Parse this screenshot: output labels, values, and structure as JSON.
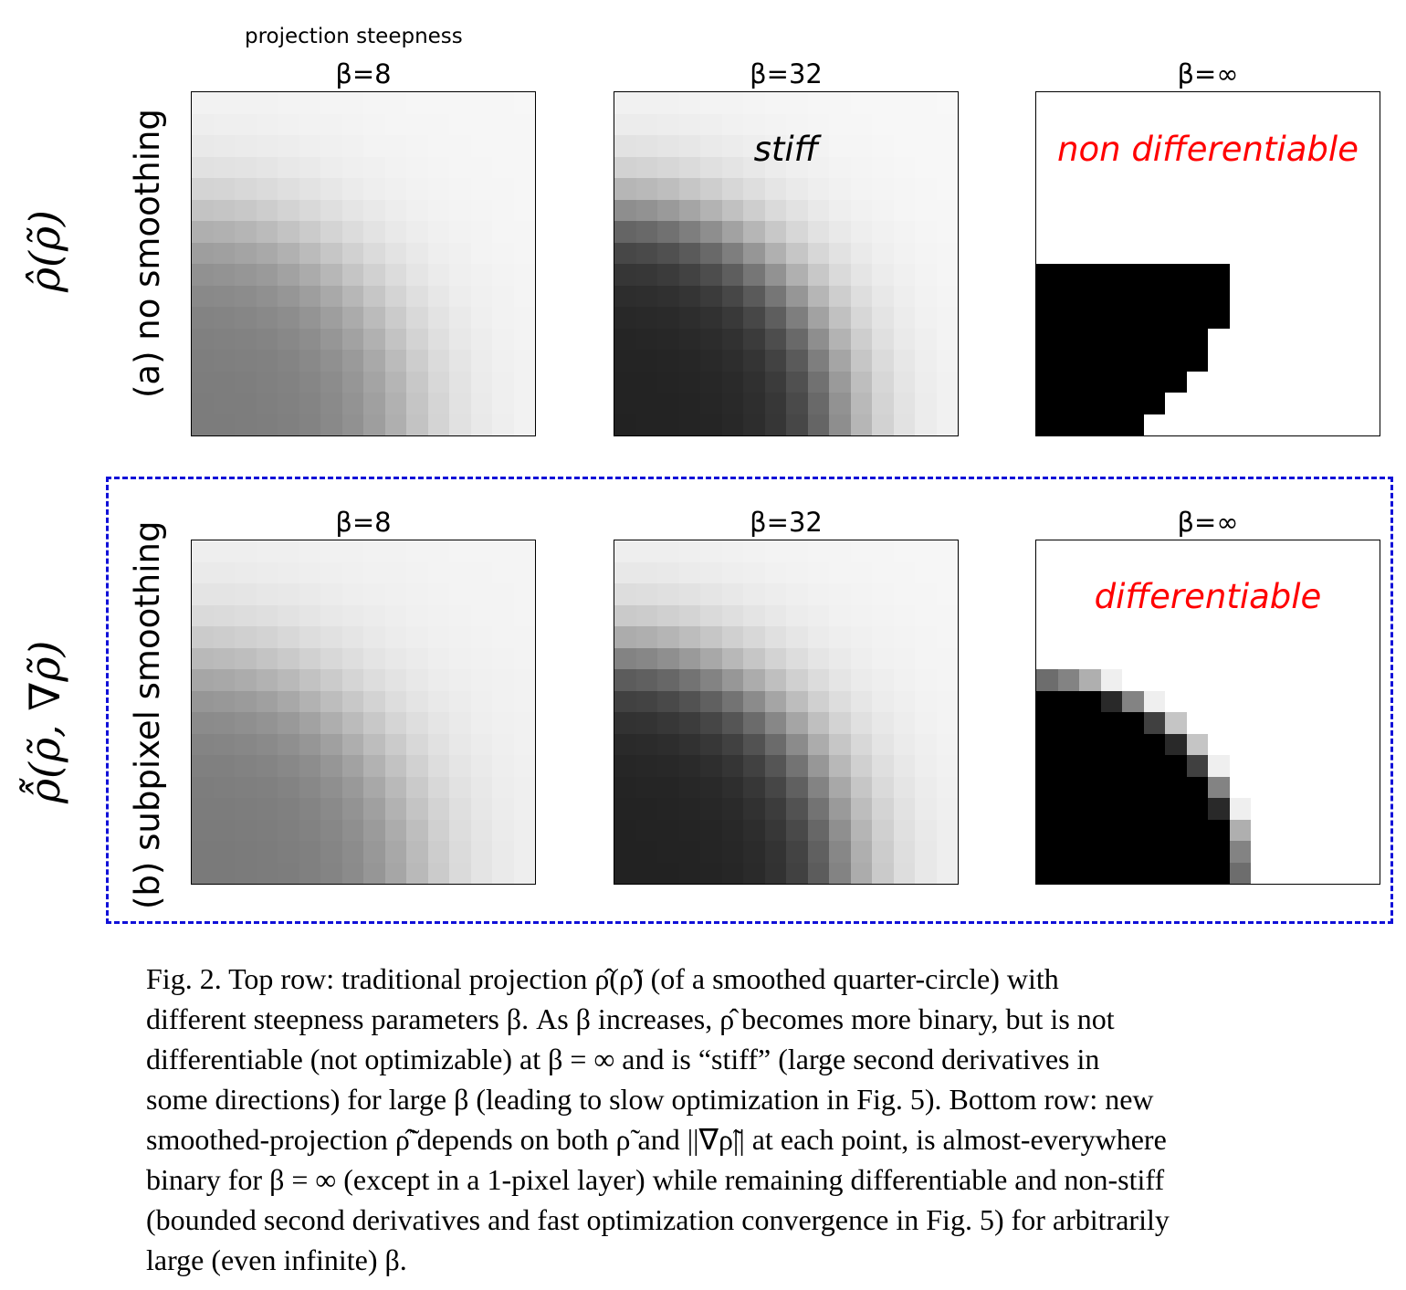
{
  "header": {
    "top_label": "projection steepness"
  },
  "rows": [
    {
      "label": "(a) no smoothing",
      "math_label": "ρ̂(ρ̃)",
      "panels": [
        {
          "beta": "β=8",
          "annotation": ""
        },
        {
          "beta": "β=32",
          "annotation": "stiff"
        },
        {
          "beta": "β=∞",
          "annotation": "non differentiable"
        }
      ]
    },
    {
      "label": "(b) subpixel smoothing",
      "math_label": "ρ̂̃(ρ̃, ∇ρ̃)",
      "panels": [
        {
          "beta": "β=8",
          "annotation": ""
        },
        {
          "beta": "β=32",
          "annotation": ""
        },
        {
          "beta": "β=∞",
          "annotation": "differentiable"
        }
      ]
    }
  ],
  "annotation_colors": {
    "stiff": "#000000",
    "differentiable": "#ff0000"
  },
  "highlight_box_color": "#1010d8",
  "caption": {
    "lines": [
      "Fig. 2.  Top row:  traditional projection ρ̂(ρ̃) (of a smoothed quarter-circle) with",
      "different steepness parameters β. As β increases, ρ̂ becomes more binary, but is not",
      "differentiable (not optimizable) at β = ∞ and is “stiff” (large second derivatives in",
      "some directions) for large β (leading to slow optimization in Fig. 5). Bottom row: new",
      "smoothed-projection ρ̂̃ depends on both ρ̃ and ||∇ρ̃|| at each point, is almost-everywhere",
      "binary for β = ∞ (except in a 1-pixel layer) while remaining differentiable and non-stiff",
      "(bounded second derivatives and fast optimization convergence in Fig. 5) for arbitrarily",
      "large (even infinite) β."
    ]
  }
}
